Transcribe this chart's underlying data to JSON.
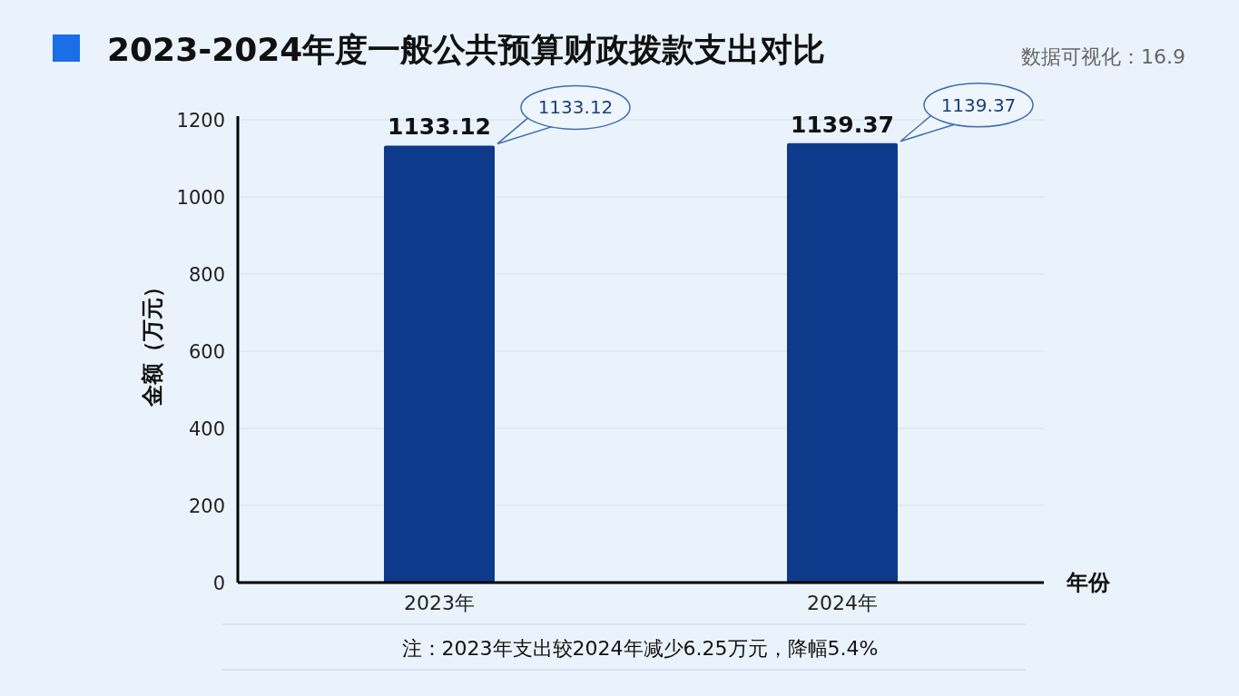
{
  "chart_data": {
    "type": "bar",
    "title": "2023-2024年度一般公共预算财政拨款支出对比",
    "xlabel": "年份",
    "ylabel": "金额（万元）",
    "categories": [
      "2023年",
      "2024年"
    ],
    "values": [
      1133.12,
      1139.37
    ],
    "color": "#0e3a8c",
    "ylim": [
      0,
      1200
    ],
    "yticks": [
      0,
      200,
      400,
      600,
      800,
      1000,
      1200
    ],
    "grid": "y",
    "data_labels": true,
    "annotations": [
      "数据可视化：16.9",
      "注：2023年支出较2024年减少6.25万元，降幅5.4%",
      "1133.12",
      "1139.37"
    ]
  }
}
